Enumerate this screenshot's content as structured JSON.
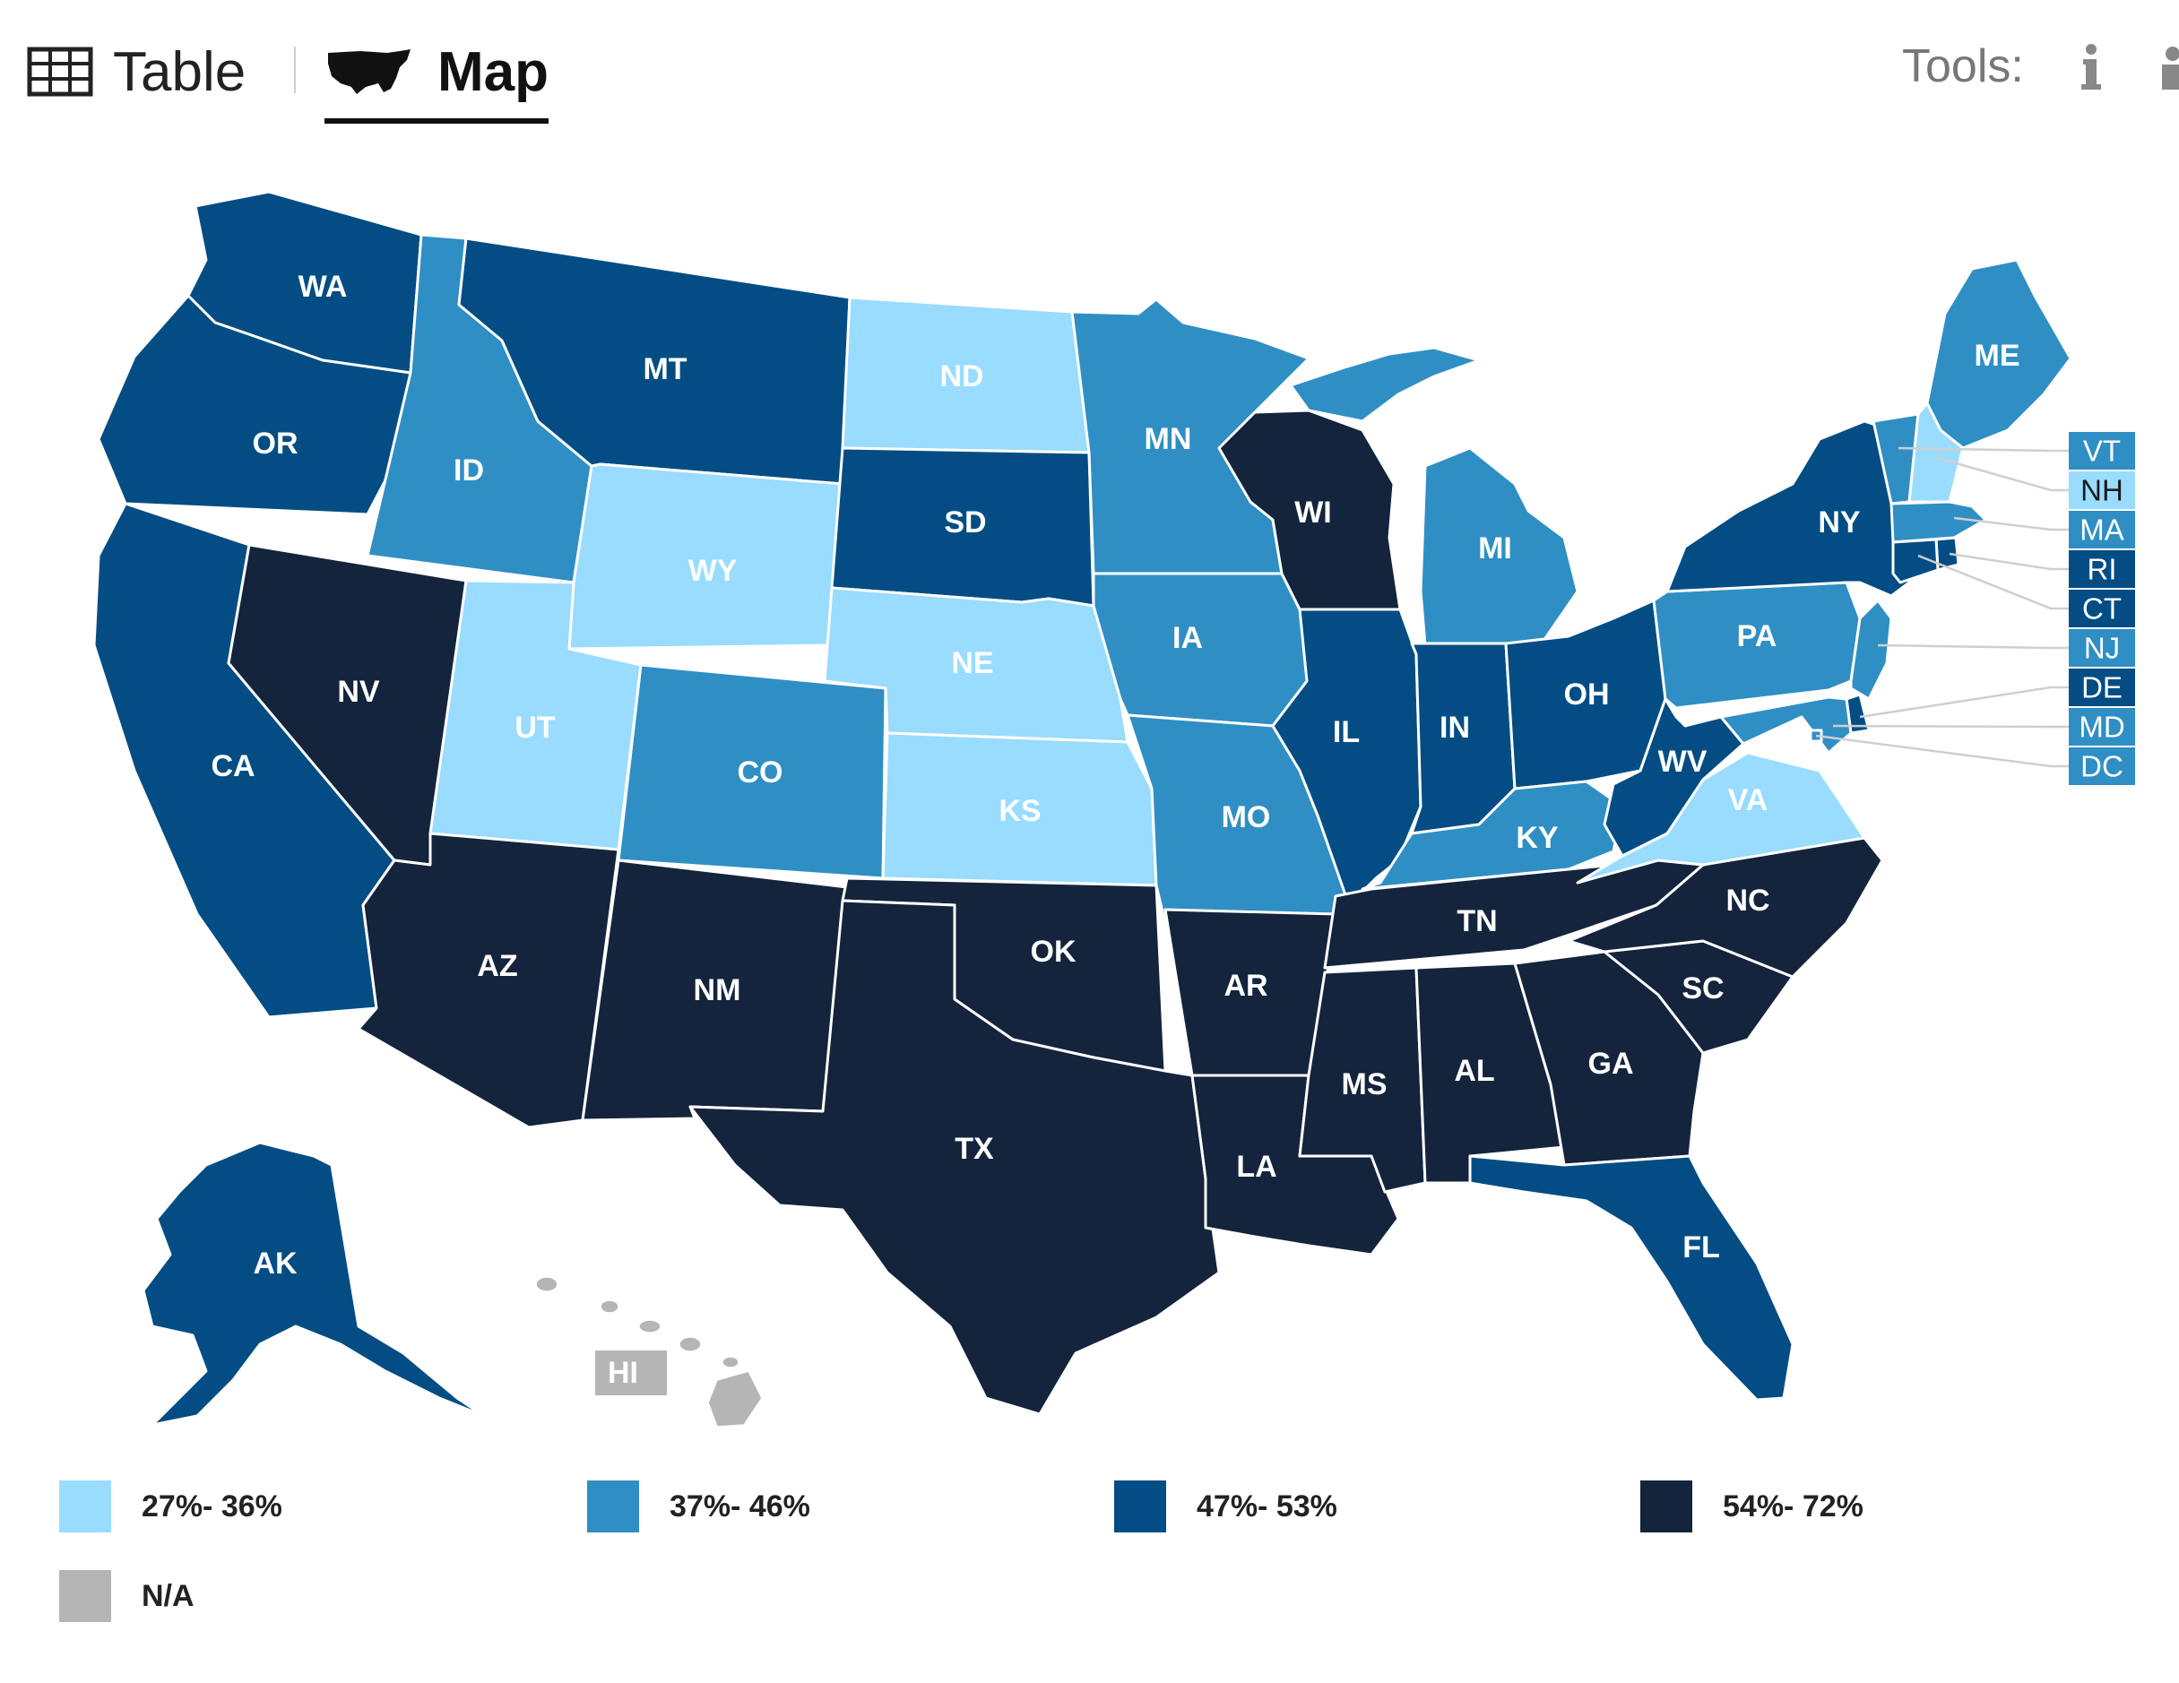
{
  "toolbar": {
    "table_tab": "Table",
    "map_tab": "Map",
    "tools_label": "Tools:"
  },
  "colors": {
    "bin1": "#99dcff",
    "bin2": "#2f8fc4",
    "bin3": "#044d84",
    "bin4": "#14243d",
    "na": "#b5b5b5"
  },
  "legend": {
    "bins": [
      {
        "label": "27%- 36%",
        "color": "#99dcff"
      },
      {
        "label": "37%- 46%",
        "color": "#2f8fc4"
      },
      {
        "label": "47%- 53%",
        "color": "#044d84"
      },
      {
        "label": "54%- 72%",
        "color": "#14243d"
      }
    ],
    "na_label": "N/A"
  },
  "states": [
    {
      "abbr": "WA",
      "bin": 3
    },
    {
      "abbr": "OR",
      "bin": 3
    },
    {
      "abbr": "CA",
      "bin": 3
    },
    {
      "abbr": "NV",
      "bin": 4
    },
    {
      "abbr": "ID",
      "bin": 2
    },
    {
      "abbr": "MT",
      "bin": 3
    },
    {
      "abbr": "WY",
      "bin": 1
    },
    {
      "abbr": "UT",
      "bin": 1
    },
    {
      "abbr": "AZ",
      "bin": 4
    },
    {
      "abbr": "CO",
      "bin": 2
    },
    {
      "abbr": "NM",
      "bin": 4
    },
    {
      "abbr": "ND",
      "bin": 1
    },
    {
      "abbr": "SD",
      "bin": 3
    },
    {
      "abbr": "NE",
      "bin": 1
    },
    {
      "abbr": "KS",
      "bin": 1
    },
    {
      "abbr": "OK",
      "bin": 4
    },
    {
      "abbr": "TX",
      "bin": 4
    },
    {
      "abbr": "MN",
      "bin": 2
    },
    {
      "abbr": "IA",
      "bin": 2
    },
    {
      "abbr": "MO",
      "bin": 2
    },
    {
      "abbr": "AR",
      "bin": 4
    },
    {
      "abbr": "LA",
      "bin": 4
    },
    {
      "abbr": "WI",
      "bin": 4
    },
    {
      "abbr": "IL",
      "bin": 3
    },
    {
      "abbr": "MI",
      "bin": 2
    },
    {
      "abbr": "IN",
      "bin": 3
    },
    {
      "abbr": "OH",
      "bin": 3
    },
    {
      "abbr": "KY",
      "bin": 2
    },
    {
      "abbr": "TN",
      "bin": 4
    },
    {
      "abbr": "MS",
      "bin": 4
    },
    {
      "abbr": "AL",
      "bin": 4
    },
    {
      "abbr": "GA",
      "bin": 4
    },
    {
      "abbr": "FL",
      "bin": 3
    },
    {
      "abbr": "SC",
      "bin": 4
    },
    {
      "abbr": "NC",
      "bin": 4
    },
    {
      "abbr": "VA",
      "bin": 1
    },
    {
      "abbr": "WV",
      "bin": 3
    },
    {
      "abbr": "PA",
      "bin": 2
    },
    {
      "abbr": "NY",
      "bin": 3
    },
    {
      "abbr": "ME",
      "bin": 2
    },
    {
      "abbr": "AK",
      "bin": 3
    },
    {
      "abbr": "HI",
      "bin": 0
    }
  ],
  "small_states": [
    {
      "abbr": "VT",
      "bin": 2
    },
    {
      "abbr": "NH",
      "bin": 1
    },
    {
      "abbr": "MA",
      "bin": 2
    },
    {
      "abbr": "RI",
      "bin": 3
    },
    {
      "abbr": "CT",
      "bin": 3
    },
    {
      "abbr": "NJ",
      "bin": 2
    },
    {
      "abbr": "DE",
      "bin": 3
    },
    {
      "abbr": "MD",
      "bin": 2
    },
    {
      "abbr": "DC",
      "bin": 2
    }
  ]
}
